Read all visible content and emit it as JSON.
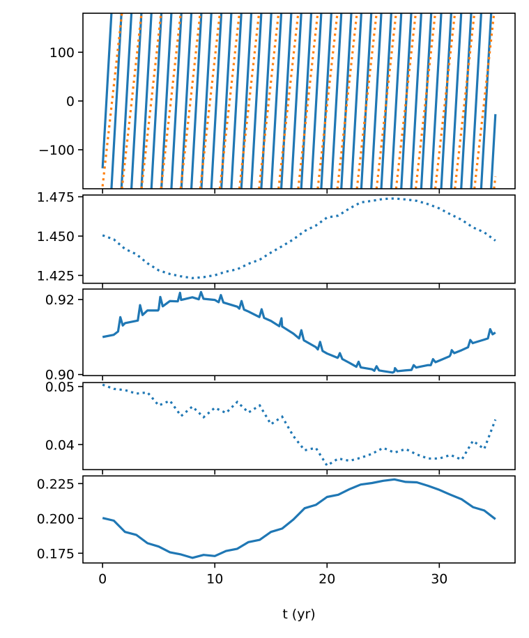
{
  "colors": {
    "blue": "#1f77b4",
    "orange": "#ff7f0e"
  },
  "xaxis": {
    "label": "t (yr)",
    "xlim": [
      -1.75,
      36.75
    ],
    "ticks": [
      0,
      10,
      20,
      30
    ],
    "tick_labels": [
      "0",
      "10",
      "20",
      "30"
    ]
  },
  "chart_data": [
    {
      "type": "line",
      "ylim": [
        -180,
        180
      ],
      "yticks": [
        100,
        0,
        -100
      ],
      "ytick_labels": [
        "100",
        "0",
        "−100"
      ],
      "grid": false,
      "series": [
        {
          "color": "#1f77b4",
          "style": "solid",
          "x": [
            0,
            0.79,
            0.79,
            1.68,
            1.68,
            2.57,
            2.57,
            3.46,
            3.46,
            4.35,
            4.35,
            5.24,
            5.24,
            6.13,
            6.13,
            7.02,
            7.02,
            7.91,
            7.91,
            8.8,
            8.8,
            9.69,
            9.69,
            10.58,
            10.58,
            11.47,
            11.47,
            12.36,
            12.36,
            13.25,
            13.25,
            14.14,
            14.14,
            15.03,
            15.03,
            15.92,
            15.92,
            16.81,
            16.81,
            17.7,
            17.7,
            18.59,
            18.59,
            19.48,
            19.48,
            20.38,
            20.38,
            21.27,
            21.27,
            22.16,
            22.16,
            23.05,
            23.05,
            23.94,
            23.94,
            24.83,
            24.83,
            25.72,
            25.72,
            26.61,
            26.61,
            27.5,
            27.5,
            28.39,
            28.39,
            29.28,
            29.28,
            30.17,
            30.17,
            31.06,
            31.06,
            31.95,
            31.95,
            32.84,
            32.84,
            33.73,
            33.73,
            34.62,
            34.62,
            35
          ],
          "y": [
            -138,
            180,
            -180,
            180,
            -180,
            180,
            -180,
            180,
            -180,
            180,
            -180,
            180,
            -180,
            180,
            -180,
            180,
            -180,
            180,
            -180,
            180,
            -180,
            180,
            -180,
            180,
            -180,
            180,
            -180,
            180,
            -180,
            180,
            -180,
            180,
            -180,
            180,
            -180,
            180,
            -180,
            180,
            -180,
            180,
            -180,
            180,
            -180,
            180,
            -180,
            180,
            -180,
            180,
            -180,
            180,
            -180,
            180,
            -180,
            180,
            -180,
            180,
            -180,
            180,
            -180,
            180,
            -180,
            180,
            -180,
            180,
            -180,
            180,
            -180,
            180,
            -180,
            180,
            -180,
            180,
            -180,
            180,
            -180,
            180,
            -180,
            180,
            -180,
            -27
          ]
        },
        {
          "color": "#ff7f0e",
          "style": "dotted",
          "x": [
            0,
            1.72,
            1.72,
            3.47,
            3.47,
            5.21,
            5.21,
            6.96,
            6.96,
            8.7,
            8.7,
            10.45,
            10.45,
            12.19,
            12.19,
            13.94,
            13.94,
            15.68,
            15.68,
            17.43,
            17.43,
            19.17,
            19.17,
            20.92,
            20.92,
            22.66,
            22.66,
            24.41,
            24.41,
            26.15,
            26.15,
            27.9,
            27.9,
            29.64,
            29.64,
            31.39,
            31.39,
            33.13,
            33.13,
            34.88,
            34.88,
            35
          ],
          "y": [
            -175,
            180,
            -180,
            180,
            -180,
            180,
            -180,
            180,
            -180,
            180,
            -180,
            180,
            -180,
            180,
            -180,
            180,
            -180,
            180,
            -180,
            180,
            -180,
            180,
            -180,
            180,
            -180,
            180,
            -180,
            180,
            -180,
            180,
            -180,
            180,
            -180,
            180,
            -180,
            180,
            -180,
            180,
            -180,
            180,
            -180,
            -155
          ]
        }
      ]
    },
    {
      "type": "line",
      "ylim": [
        1.42,
        1.4761
      ],
      "yticks": [
        1.475,
        1.45,
        1.425
      ],
      "ytick_labels": [
        "1.475",
        "1.450",
        "1.425"
      ],
      "grid": false,
      "series": [
        {
          "color": "#1f77b4",
          "style": "dotted",
          "x": [
            0,
            1,
            2,
            3,
            4,
            5,
            6,
            7,
            8,
            9,
            10,
            11,
            12,
            13,
            14,
            15,
            16,
            17,
            18,
            19,
            20,
            21,
            22,
            23,
            24,
            25,
            26,
            27,
            28,
            29,
            30,
            31,
            32,
            33,
            34,
            35
          ],
          "y": [
            1.4505,
            1.4479,
            1.4418,
            1.4385,
            1.4327,
            1.4282,
            1.4259,
            1.4244,
            1.4233,
            1.4239,
            1.4251,
            1.4274,
            1.4289,
            1.4324,
            1.435,
            1.4395,
            1.4436,
            1.4479,
            1.4532,
            1.4567,
            1.4618,
            1.463,
            1.4676,
            1.4714,
            1.4724,
            1.4736,
            1.4739,
            1.4733,
            1.4724,
            1.4703,
            1.4676,
            1.4638,
            1.4603,
            1.4555,
            1.4524,
            1.4471
          ]
        }
      ]
    },
    {
      "type": "line",
      "ylim": [
        0.8997,
        0.9228
      ],
      "yticks": [
        0.92,
        0.9
      ],
      "ytick_labels": [
        "0.92",
        "0.90"
      ],
      "grid": false,
      "series": [
        {
          "color": "#1f77b4",
          "style": "solid",
          "x": [
            0,
            1,
            2,
            3,
            4,
            5,
            6,
            7,
            8,
            9,
            10,
            11,
            12,
            13,
            14,
            15,
            16,
            17,
            18,
            19,
            20,
            21,
            22,
            23,
            24,
            25,
            26,
            27,
            28,
            29,
            30,
            31,
            32,
            33,
            34,
            35
          ],
          "y": [
            0.91,
            0.9106,
            0.9137,
            0.9143,
            0.9171,
            0.9174,
            0.9196,
            0.9199,
            0.9206,
            0.9202,
            0.9199,
            0.919,
            0.9181,
            0.9168,
            0.9156,
            0.9143,
            0.9128,
            0.9109,
            0.909,
            0.9073,
            0.9056,
            0.9047,
            0.9031,
            0.9019,
            0.9014,
            0.9009,
            0.9008,
            0.9011,
            0.9019,
            0.9025,
            0.9037,
            0.9053,
            0.9065,
            0.9084,
            0.9093,
            0.9112
          ],
          "peaks": {
            "x": [
              1.58,
              3.34,
              5.14,
              6.9,
              8.77,
              10.54,
              12.38,
              14.17,
              15.94,
              17.71,
              19.38,
              21.14,
              22.81,
              24.41,
              26.05,
              27.72,
              29.44,
              31.11,
              32.76,
              34.53
            ],
            "y": [
              0.9153,
              0.9185,
              0.9207,
              0.9218,
              0.922,
              0.9212,
              0.9196,
              0.9174,
              0.915,
              0.9118,
              0.9087,
              0.9057,
              0.9034,
              0.9022,
              0.9017,
              0.9025,
              0.9041,
              0.9065,
              0.9092,
              0.9121
            ]
          }
        }
      ]
    },
    {
      "type": "line",
      "ylim": [
        0.03568,
        0.05068
      ],
      "yticks": [
        0.05,
        0.04
      ],
      "ytick_labels": [
        "0.05",
        "0.04"
      ],
      "grid": false,
      "series": [
        {
          "color": "#1f77b4",
          "style": "dotted",
          "x": [
            0,
            1,
            2,
            3,
            4,
            5,
            6,
            7,
            8,
            9,
            10,
            11,
            12,
            13,
            14,
            15,
            16,
            17,
            18,
            19,
            20,
            21,
            22,
            23,
            24,
            25,
            26,
            27,
            28,
            29,
            30,
            31,
            32,
            33,
            34,
            35
          ],
          "y": [
            0.05033,
            0.0496,
            0.04939,
            0.04878,
            0.04899,
            0.04674,
            0.04756,
            0.04492,
            0.04655,
            0.04472,
            0.04634,
            0.04545,
            0.04735,
            0.04553,
            0.04674,
            0.0435,
            0.0448,
            0.04146,
            0.03902,
            0.03943,
            0.03638,
            0.0376,
            0.0372,
            0.03772,
            0.03841,
            0.03943,
            0.03862,
            0.03923,
            0.03829,
            0.0376,
            0.0376,
            0.03821,
            0.0374,
            0.04065,
            0.03923,
            0.04431
          ]
        }
      ]
    },
    {
      "type": "line",
      "ylim": [
        0.168,
        0.2305
      ],
      "yticks": [
        0.225,
        0.2,
        0.175
      ],
      "ytick_labels": [
        "0.225",
        "0.200",
        "0.175"
      ],
      "grid": false,
      "series": [
        {
          "color": "#1f77b4",
          "style": "solid",
          "x": [
            0,
            1,
            2,
            3,
            4,
            5,
            6,
            7,
            8,
            9,
            10,
            11,
            12,
            13,
            14,
            15,
            16,
            17,
            18,
            19,
            20,
            21,
            22,
            23,
            24,
            25,
            26,
            27,
            28,
            29,
            30,
            31,
            32,
            33,
            34,
            35
          ],
          "y": [
            0.2003,
            0.1984,
            0.1903,
            0.1882,
            0.1822,
            0.1798,
            0.1757,
            0.1741,
            0.1717,
            0.1738,
            0.173,
            0.1766,
            0.1782,
            0.183,
            0.1846,
            0.1903,
            0.1927,
            0.1992,
            0.2073,
            0.2097,
            0.2154,
            0.217,
            0.221,
            0.2243,
            0.2254,
            0.227,
            0.228,
            0.2262,
            0.2259,
            0.2234,
            0.2205,
            0.217,
            0.2137,
            0.2081,
            0.2057,
            0.1995
          ]
        }
      ]
    }
  ]
}
